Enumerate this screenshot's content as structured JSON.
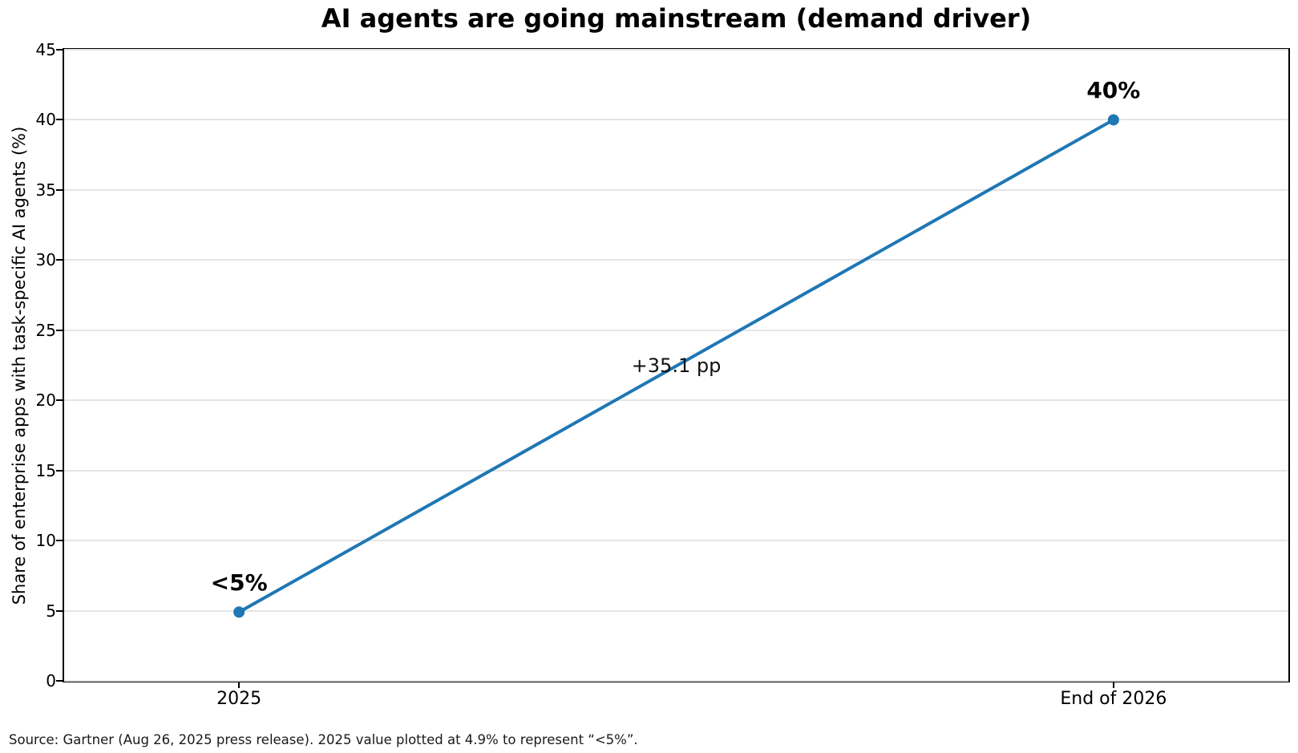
{
  "source_note": "Source: Gartner (Aug 26, 2025 press release). 2025 value plotted at 4.9% to represent “<5%”.",
  "chart_data": {
    "type": "line",
    "title": "AI agents are going mainstream (demand driver)",
    "xlabel": "",
    "ylabel": "Share of enterprise apps with task-specific AI agents (%)",
    "categories": [
      "2025",
      "End of 2026"
    ],
    "x": [
      0,
      1
    ],
    "values": [
      4.9,
      40
    ],
    "point_labels": [
      "<5%",
      "40%"
    ],
    "delta_annotation": "+35.1 pp",
    "xlim": [
      -0.2,
      1.2
    ],
    "ylim": [
      0,
      45
    ],
    "yticks": [
      0,
      5,
      10,
      15,
      20,
      25,
      30,
      35,
      40,
      45
    ],
    "grid": "horizontal",
    "legend": "none",
    "line_color": "#1f77b4",
    "grid_color": "#e5e5e5",
    "marker": "circle"
  }
}
